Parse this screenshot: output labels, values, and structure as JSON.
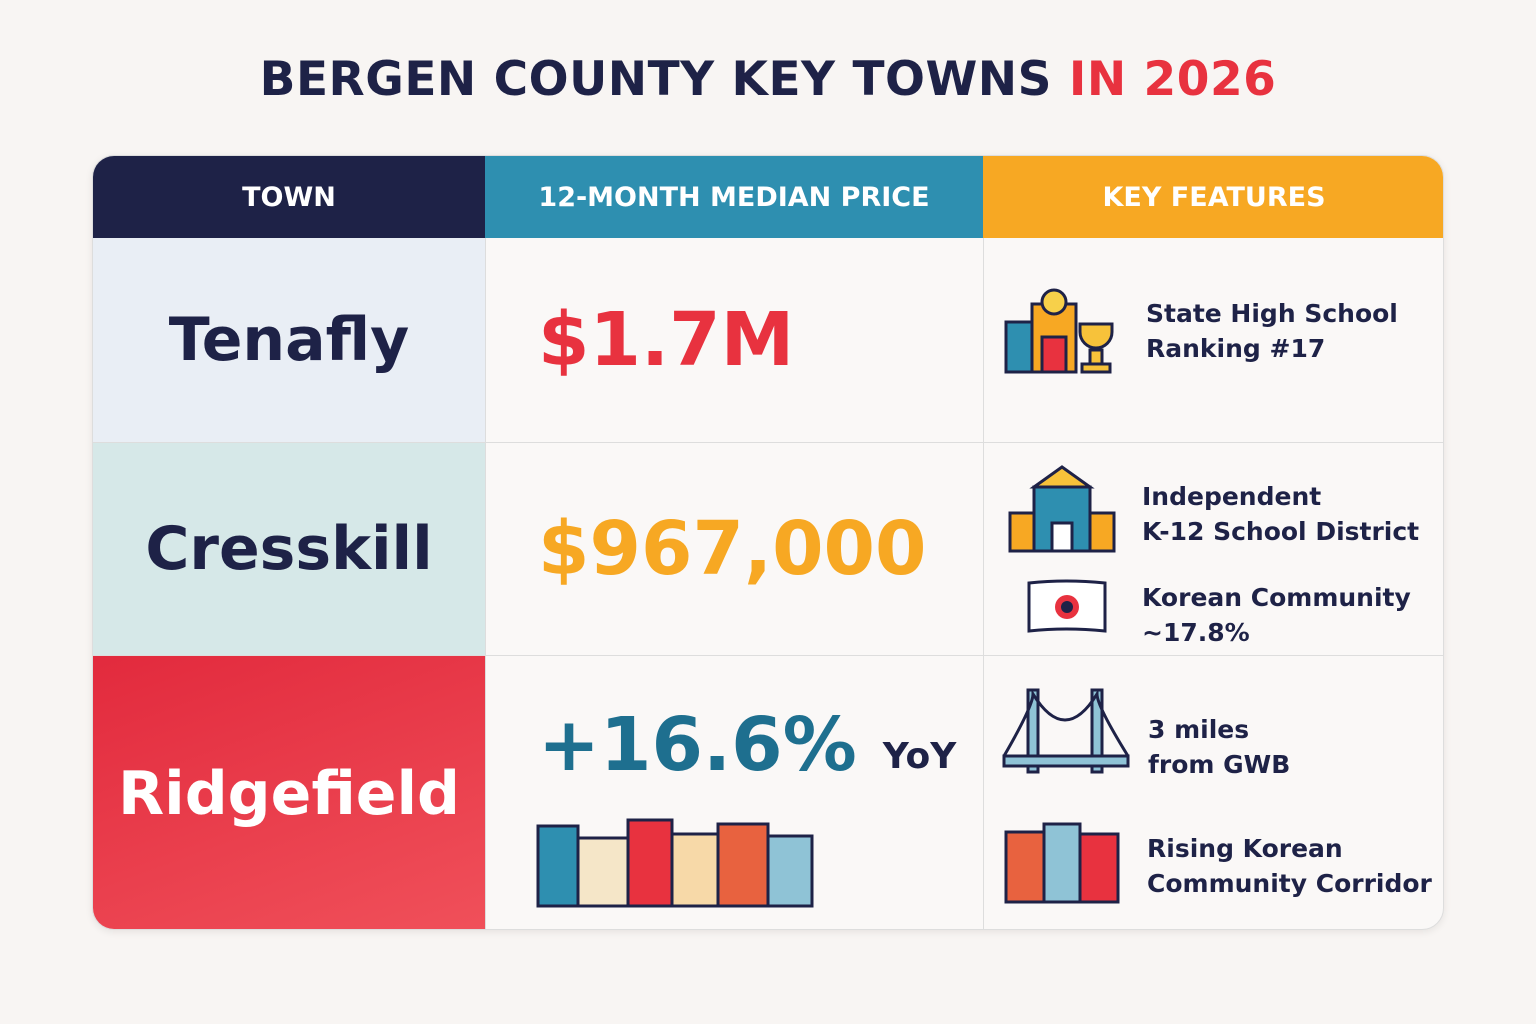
{
  "header": {
    "title": "BERGEN COUNTY KEY TOWNS",
    "title_highlight": "IN 2026"
  },
  "table": {
    "columns": [
      "TOWN",
      "12-MONTH MEDIAN PRICE",
      "KEY FEATURES"
    ],
    "rows": [
      {
        "town": "Tenafly",
        "price": "$1.7M",
        "features": [
          [
            "State High School",
            "Ranking #17"
          ]
        ]
      },
      {
        "town": "Cresskill",
        "price": "$967,000",
        "features": [
          [
            "Independent",
            "K-12 School District"
          ],
          [
            "Korean Community",
            "~17.8%"
          ]
        ]
      },
      {
        "town": "Ridgefield",
        "price": "+16.6%",
        "price_suffix": "YoY",
        "features": [
          [
            "3 miles",
            "from GWB"
          ],
          [
            "Rising Korean",
            "Community Corridor"
          ]
        ]
      }
    ]
  }
}
